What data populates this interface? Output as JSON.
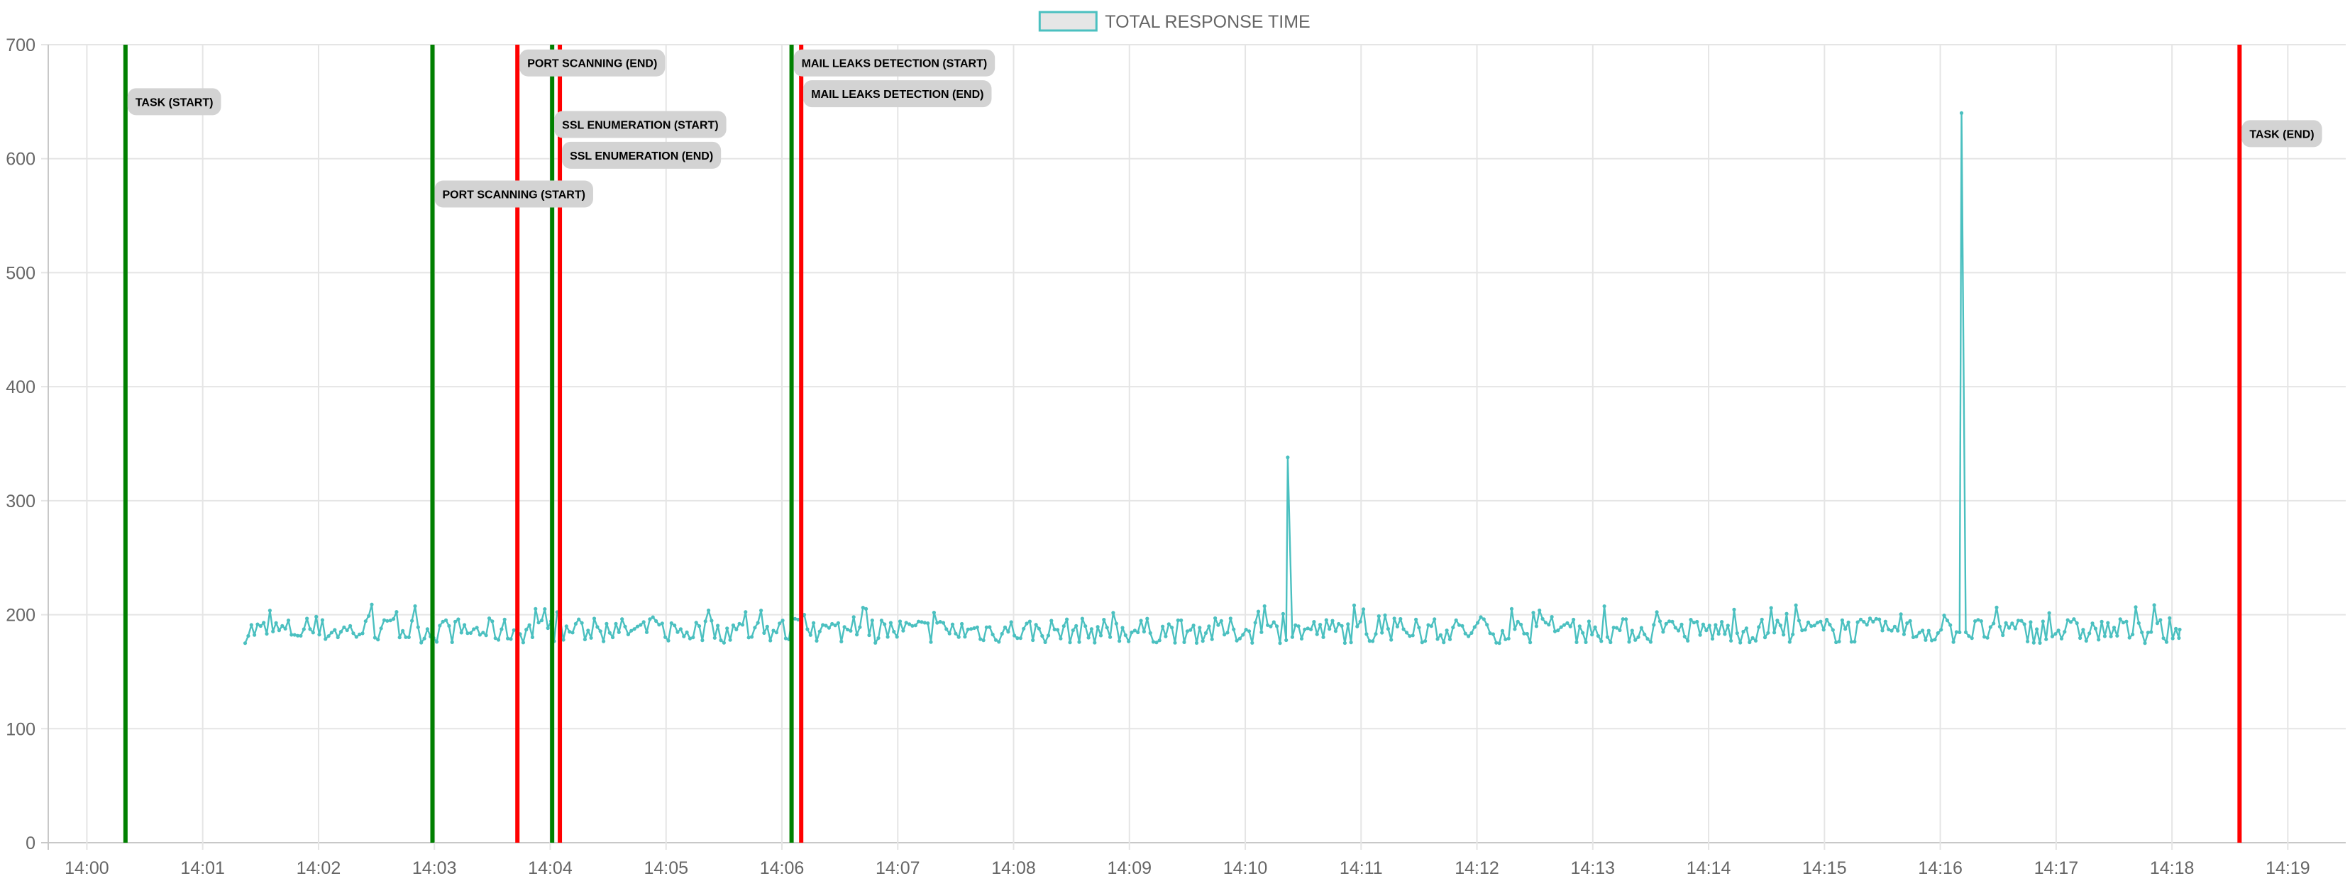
{
  "chart_data": {
    "type": "line",
    "title": "",
    "xlabel": "",
    "ylabel": "",
    "ylim": [
      0,
      700
    ],
    "yticks": [
      "0",
      "100",
      "200",
      "300",
      "400",
      "500",
      "600",
      "700"
    ],
    "xlim": [
      "13:59:40",
      "14:19:30"
    ],
    "xticks": [
      "14:00",
      "14:01",
      "14:02",
      "14:03",
      "14:04",
      "14:05",
      "14:06",
      "14:07",
      "14:08",
      "14:09",
      "14:10",
      "14:11",
      "14:12",
      "14:13",
      "14:14",
      "14:15",
      "14:16",
      "14:17",
      "14:18",
      "14:19"
    ],
    "grid": true,
    "legend_position": "top-center",
    "series": [
      {
        "name": "TOTAL RESPONSE TIME",
        "color": "#4bc0c0",
        "fill": "#e6e6e6",
        "start": "14:01:22",
        "end": "14:18:04",
        "baseline_range": [
          170,
          205
        ],
        "spikes": [
          {
            "x": "14:10:22",
            "y": 338
          },
          {
            "x": "14:16:11",
            "y": 640
          }
        ]
      }
    ],
    "annotations": [
      {
        "label": "TASK (START)",
        "x": "14:00:20",
        "color": "#008000",
        "label_y": 650
      },
      {
        "label": "PORT SCANNING (START)",
        "x": "14:02:59",
        "color": "#008000",
        "label_y": 569
      },
      {
        "label": "PORT SCANNING (END)",
        "x": "14:03:43",
        "color": "#ff0000",
        "label_y": 684
      },
      {
        "label": "SSL ENUMERATION (START)",
        "x": "14:04:01",
        "color": "#008000",
        "label_y": 630
      },
      {
        "label": "SSL ENUMERATION (END)",
        "x": "14:04:05",
        "color": "#ff0000",
        "label_y": 603
      },
      {
        "label": "MAIL LEAKS DETECTION (START)",
        "x": "14:06:05",
        "color": "#008000",
        "label_y": 684
      },
      {
        "label": "MAIL LEAKS DETECTION (END)",
        "x": "14:06:10",
        "color": "#ff0000",
        "label_y": 657
      },
      {
        "label": "TASK (END)",
        "x": "14:18:35",
        "color": "#ff0000",
        "label_y": 622
      }
    ]
  }
}
